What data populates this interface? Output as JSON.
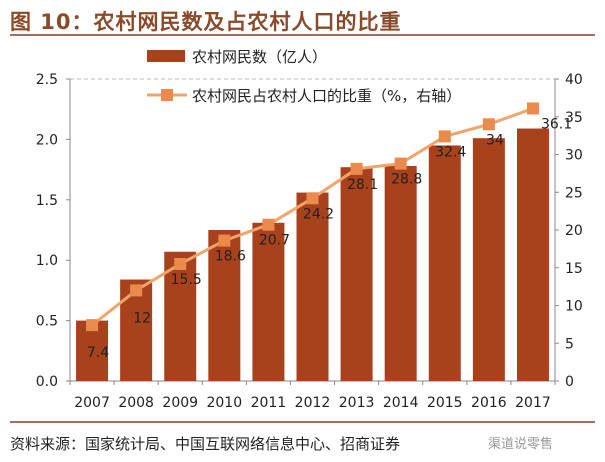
{
  "title": "图 10：农村网民数及占农村人口的比重",
  "source": "资料来源：国家统计局、中国互联网络信息中心、招商证券",
  "watermark": "渠道说零售",
  "colors": {
    "bar": "#a8421c",
    "line": "#f2a46a",
    "marker": "#ea8a4c",
    "title": "#8a4a2a"
  },
  "chart_data": {
    "type": "bar+line",
    "categories": [
      "2007",
      "2008",
      "2009",
      "2010",
      "2011",
      "2012",
      "2013",
      "2014",
      "2015",
      "2016",
      "2017"
    ],
    "series": [
      {
        "name": "农村网民数（亿人）",
        "type": "bar",
        "axis": "left",
        "values": [
          0.5,
          0.84,
          1.07,
          1.25,
          1.31,
          1.56,
          1.77,
          1.78,
          1.95,
          2.01,
          2.09
        ]
      },
      {
        "name": "农村网民占农村人口的比重（%，右轴）",
        "type": "line",
        "axis": "right",
        "values": [
          7.4,
          12,
          15.5,
          18.6,
          20.7,
          24.2,
          28.1,
          28.8,
          32.4,
          34,
          36.1
        ],
        "labels": [
          "7.4",
          "12",
          "15.5",
          "18.6",
          "20.7",
          "24.2",
          "28.1",
          "28.8",
          "32.4",
          "34",
          "36.1"
        ]
      }
    ],
    "ylim_left": [
      0,
      2.5
    ],
    "yticks_left": [
      "0.0",
      "0.5",
      "1.0",
      "1.5",
      "2.0",
      "2.5"
    ],
    "ylim_right": [
      0,
      40
    ],
    "yticks_right": [
      "0",
      "5",
      "10",
      "15",
      "20",
      "25",
      "30",
      "35",
      "40"
    ],
    "grid": "top dashed only",
    "legend": "top-center"
  }
}
